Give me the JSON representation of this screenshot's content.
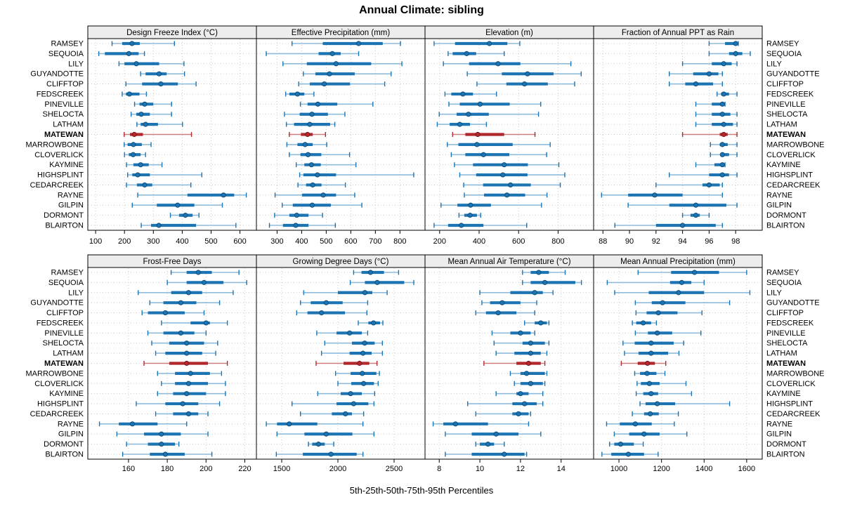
{
  "title": "Annual Climate: sibling",
  "footer_label": "5th-25th-50th-75th-95th Percentiles",
  "colors": {
    "series_blue": "#1c74b2",
    "series_blue_light": "#8fbcdb",
    "series_blue_dark": "#0d4f7e",
    "highlight_red": "#b2282c",
    "highlight_red_light": "#cd7f7f",
    "highlight_red_dark": "#7c1518",
    "strip_bg": "#ededed",
    "grid": "#c9c9c9",
    "panel_border": "#000000",
    "text": "#000000"
  },
  "chart_data": {
    "type": "dotplot-percentile-intervals",
    "layout": "2 rows x 4 columns trellis",
    "percentile_labels": [
      "5th",
      "25th",
      "50th",
      "75th",
      "95th"
    ],
    "highlight_site": "MATEWAN",
    "sites": [
      "RAMSEY",
      "SEQUOIA",
      "LILY",
      "GUYANDOTTE",
      "CLIFFTOP",
      "FEDSCREEK",
      "PINEVILLE",
      "SHELOCTA",
      "LATHAM",
      "MATEWAN",
      "MARROWBONE",
      "CLOVERLICK",
      "KAYMINE",
      "HIGHSPLINT",
      "CEDARCREEK",
      "RAYNE",
      "GILPIN",
      "DORMONT",
      "BLAIRTON"
    ],
    "panels": [
      {
        "title": "Design Freeze Index (°C)",
        "xlim": [
          73,
          657
        ],
        "ticks": [
          100,
          200,
          300,
          400,
          500,
          600
        ],
        "values": [
          [
            157,
            192,
            226,
            253,
            373
          ],
          [
            111,
            132,
            215,
            249,
            269
          ],
          [
            181,
            200,
            241,
            320,
            406
          ],
          [
            256,
            273,
            320,
            346,
            408
          ],
          [
            205,
            261,
            326,
            385,
            448
          ],
          [
            192,
            205,
            217,
            252,
            276
          ],
          [
            235,
            252,
            270,
            300,
            363
          ],
          [
            223,
            241,
            258,
            288,
            363
          ],
          [
            243,
            256,
            273,
            316,
            401
          ],
          [
            199,
            219,
            234,
            264,
            432
          ],
          [
            199,
            211,
            231,
            260,
            292
          ],
          [
            200,
            215,
            230,
            256,
            273
          ],
          [
            207,
            231,
            256,
            284,
            330
          ],
          [
            211,
            227,
            246,
            288,
            468
          ],
          [
            207,
            243,
            270,
            296,
            430
          ],
          [
            246,
            418,
            543,
            580,
            622
          ],
          [
            227,
            312,
            384,
            442,
            539
          ],
          [
            359,
            389,
            411,
            436,
            458
          ],
          [
            258,
            292,
            319,
            448,
            586
          ]
        ]
      },
      {
        "title": "Effective Precipitation (mm)",
        "xlim": [
          216,
          902
        ],
        "ticks": [
          300,
          400,
          500,
          600,
          700,
          800
        ],
        "values": [
          [
            361,
            486,
            632,
            730,
            802
          ],
          [
            256,
            469,
            525,
            559,
            632
          ],
          [
            324,
            421,
            540,
            683,
            808
          ],
          [
            407,
            456,
            513,
            616,
            764
          ],
          [
            388,
            433,
            492,
            597,
            738
          ],
          [
            335,
            350,
            383,
            411,
            450
          ],
          [
            395,
            424,
            466,
            545,
            690
          ],
          [
            330,
            392,
            442,
            507,
            576
          ],
          [
            338,
            369,
            433,
            516,
            535
          ],
          [
            350,
            397,
            424,
            445,
            497
          ],
          [
            340,
            383,
            414,
            445,
            502
          ],
          [
            350,
            395,
            426,
            480,
            595
          ],
          [
            378,
            411,
            440,
            478,
            621
          ],
          [
            392,
            407,
            464,
            540,
            856
          ],
          [
            385,
            418,
            445,
            481,
            578
          ],
          [
            292,
            402,
            488,
            540,
            616
          ],
          [
            321,
            364,
            443,
            519,
            645
          ],
          [
            290,
            350,
            380,
            428,
            485
          ],
          [
            269,
            324,
            376,
            428,
            537
          ]
        ]
      },
      {
        "title": "Elevation (m)",
        "xlim": [
          126,
          980
        ],
        "ticks": [
          200,
          400,
          600,
          800
        ],
        "values": [
          [
            172,
            278,
            452,
            543,
            606
          ],
          [
            243,
            266,
            337,
            385,
            527
          ],
          [
            219,
            349,
            496,
            609,
            865
          ],
          [
            340,
            515,
            645,
            777,
            917
          ],
          [
            389,
            538,
            630,
            748,
            884
          ],
          [
            227,
            259,
            318,
            369,
            488
          ],
          [
            247,
            302,
            405,
            555,
            712
          ],
          [
            198,
            286,
            346,
            449,
            701
          ],
          [
            188,
            251,
            302,
            354,
            437
          ],
          [
            266,
            330,
            393,
            527,
            683
          ],
          [
            239,
            295,
            389,
            570,
            760
          ],
          [
            259,
            330,
            422,
            553,
            742
          ],
          [
            275,
            369,
            527,
            647,
            804
          ],
          [
            302,
            385,
            520,
            645,
            834
          ],
          [
            322,
            420,
            559,
            662,
            811
          ],
          [
            325,
            425,
            541,
            633,
            744
          ],
          [
            207,
            290,
            357,
            460,
            716
          ],
          [
            298,
            325,
            354,
            389,
            408
          ],
          [
            172,
            243,
            310,
            422,
            641
          ]
        ]
      },
      {
        "title": "Fraction of Annual PPT as Rain",
        "xlim": [
          87.3,
          100.0
        ],
        "ticks": [
          88,
          90,
          92,
          94,
          96,
          98
        ],
        "values": [
          [
            96.0,
            97.2,
            98.0,
            98.1,
            98.2
          ],
          [
            96.0,
            97.5,
            98.0,
            98.5,
            99.1
          ],
          [
            94.0,
            96.2,
            97.1,
            97.7,
            98.1
          ],
          [
            93.0,
            94.8,
            96.0,
            96.7,
            97.0
          ],
          [
            93.0,
            94.2,
            95.0,
            96.3,
            97.0
          ],
          [
            96.6,
            96.9,
            97.1,
            97.5,
            98.1
          ],
          [
            95.0,
            96.2,
            97.0,
            97.1,
            97.2
          ],
          [
            95.0,
            96.2,
            97.0,
            97.6,
            98.1
          ],
          [
            95.0,
            96.2,
            97.1,
            97.8,
            98.1
          ],
          [
            94.0,
            96.8,
            97.1,
            97.4,
            98.1
          ],
          [
            96.1,
            96.8,
            97.0,
            97.4,
            98.1
          ],
          [
            96.1,
            96.9,
            97.0,
            97.5,
            98.1
          ],
          [
            95.0,
            96.4,
            97.0,
            97.1,
            97.2
          ],
          [
            93.0,
            96.0,
            97.0,
            97.5,
            98.1
          ],
          [
            92.0,
            95.5,
            96.0,
            96.8,
            97.0
          ],
          [
            87.9,
            89.9,
            91.9,
            94.0,
            97.0
          ],
          [
            89.9,
            93.0,
            95.0,
            97.3,
            98.1
          ],
          [
            94.0,
            94.6,
            95.0,
            95.3,
            96.0
          ],
          [
            88.9,
            92.0,
            94.0,
            96.5,
            97.0
          ]
        ]
      },
      {
        "title": "Frost-Free Days",
        "xlim": [
          139,
          226
        ],
        "ticks": [
          160,
          180,
          200,
          220
        ],
        "values": [
          [
            182,
            190,
            196,
            203,
            217
          ],
          [
            180,
            190,
            199,
            209,
            221
          ],
          [
            165,
            182,
            191,
            198,
            214
          ],
          [
            171,
            178,
            187,
            195,
            207
          ],
          [
            167,
            170,
            179,
            189,
            199
          ],
          [
            177,
            192,
            200,
            202,
            211
          ],
          [
            170,
            178,
            187,
            194,
            200
          ],
          [
            172,
            181,
            190,
            199,
            206
          ],
          [
            174,
            179,
            190,
            198,
            205
          ],
          [
            168,
            181,
            190,
            201,
            211
          ],
          [
            175,
            184,
            192,
            202,
            208
          ],
          [
            177,
            184,
            191,
            201,
            210
          ],
          [
            175,
            183,
            190,
            200,
            210
          ],
          [
            164,
            179,
            188,
            196,
            207
          ],
          [
            174,
            183,
            191,
            196,
            201
          ],
          [
            145,
            155,
            162,
            175,
            190
          ],
          [
            154,
            168,
            177,
            187,
            201
          ],
          [
            159,
            170,
            177,
            184,
            186
          ],
          [
            157,
            171,
            179,
            189,
            203
          ]
        ]
      },
      {
        "title": "Growing Degree Days (°C)",
        "xlim": [
          1275,
          2775
        ],
        "ticks": [
          1500,
          2000,
          2500
        ],
        "values": [
          [
            2140,
            2210,
            2290,
            2410,
            2540
          ],
          [
            2110,
            2240,
            2350,
            2590,
            2675
          ],
          [
            1696,
            2000,
            2240,
            2306,
            2438
          ],
          [
            1667,
            1758,
            1896,
            2042,
            2265
          ],
          [
            1633,
            1729,
            1854,
            2063,
            2258
          ],
          [
            2181,
            2271,
            2317,
            2375,
            2400
          ],
          [
            1812,
            1988,
            2104,
            2213,
            2265
          ],
          [
            1883,
            2125,
            2238,
            2327,
            2396
          ],
          [
            1854,
            2104,
            2223,
            2300,
            2396
          ],
          [
            1806,
            2050,
            2192,
            2279,
            2348
          ],
          [
            1979,
            2113,
            2217,
            2342,
            2369
          ],
          [
            2000,
            2119,
            2229,
            2321,
            2358
          ],
          [
            1821,
            2025,
            2113,
            2213,
            2327
          ],
          [
            1592,
            1988,
            2140,
            2271,
            2321
          ],
          [
            1667,
            1946,
            2067,
            2125,
            2229
          ],
          [
            1363,
            1458,
            1567,
            1817,
            2223
          ],
          [
            1458,
            1702,
            1896,
            2129,
            2321
          ],
          [
            1738,
            1771,
            1827,
            1883,
            1963
          ],
          [
            1452,
            1688,
            1938,
            2167,
            2223
          ]
        ]
      },
      {
        "title": "Mean Annual Air Temperature (°C)",
        "xlim": [
          7.3,
          15.6
        ],
        "ticks": [
          8,
          10,
          12,
          14
        ],
        "values": [
          [
            12.1,
            12.5,
            12.9,
            13.4,
            14.2
          ],
          [
            12.1,
            12.5,
            13.2,
            14.7,
            15.0
          ],
          [
            10.0,
            11.5,
            12.7,
            13.1,
            13.6
          ],
          [
            10.1,
            10.5,
            11.1,
            12.0,
            12.8
          ],
          [
            9.8,
            10.3,
            10.9,
            11.8,
            12.7
          ],
          [
            12.2,
            12.7,
            13.0,
            13.3,
            13.4
          ],
          [
            10.6,
            11.5,
            12.0,
            12.5,
            12.7
          ],
          [
            10.7,
            12.1,
            12.5,
            13.2,
            13.4
          ],
          [
            10.8,
            11.7,
            12.5,
            13.0,
            13.3
          ],
          [
            10.2,
            11.8,
            12.4,
            13.0,
            13.2
          ],
          [
            11.5,
            12.0,
            12.3,
            13.2,
            13.3
          ],
          [
            11.7,
            12.0,
            12.5,
            13.1,
            13.2
          ],
          [
            10.8,
            11.8,
            12.0,
            12.4,
            13.1
          ],
          [
            9.4,
            11.6,
            12.2,
            12.8,
            13.1
          ],
          [
            9.8,
            11.6,
            11.9,
            12.4,
            12.5
          ],
          [
            7.7,
            8.2,
            8.8,
            10.4,
            12.4
          ],
          [
            8.3,
            9.6,
            10.8,
            11.9,
            13.0
          ],
          [
            9.8,
            10.0,
            10.4,
            10.7,
            11.2
          ],
          [
            8.3,
            9.6,
            11.2,
            12.2,
            12.3
          ]
        ]
      },
      {
        "title": "Mean Annual Precipitation (mm)",
        "xlim": [
          881,
          1673
        ],
        "ticks": [
          1000,
          1200,
          1400,
          1600
        ],
        "values": [
          [
            1090,
            1245,
            1355,
            1470,
            1600
          ],
          [
            945,
            1240,
            1295,
            1340,
            1400
          ],
          [
            980,
            1140,
            1280,
            1400,
            1615
          ],
          [
            1077,
            1154,
            1205,
            1312,
            1520
          ],
          [
            1080,
            1130,
            1185,
            1275,
            1390
          ],
          [
            1063,
            1081,
            1114,
            1151,
            1176
          ],
          [
            1077,
            1136,
            1180,
            1250,
            1385
          ],
          [
            1019,
            1074,
            1151,
            1257,
            1304
          ],
          [
            1026,
            1092,
            1151,
            1231,
            1282
          ],
          [
            1011,
            1088,
            1134,
            1169,
            1220
          ],
          [
            1074,
            1099,
            1132,
            1176,
            1216
          ],
          [
            1085,
            1103,
            1143,
            1191,
            1315
          ],
          [
            1081,
            1114,
            1151,
            1184,
            1341
          ],
          [
            1099,
            1125,
            1180,
            1264,
            1520
          ],
          [
            1063,
            1118,
            1147,
            1187,
            1279
          ],
          [
            942,
            1004,
            1077,
            1154,
            1260
          ],
          [
            978,
            1048,
            1118,
            1191,
            1319
          ],
          [
            956,
            978,
            1008,
            1070,
            1114
          ],
          [
            920,
            964,
            1044,
            1118,
            1184
          ]
        ]
      }
    ]
  }
}
